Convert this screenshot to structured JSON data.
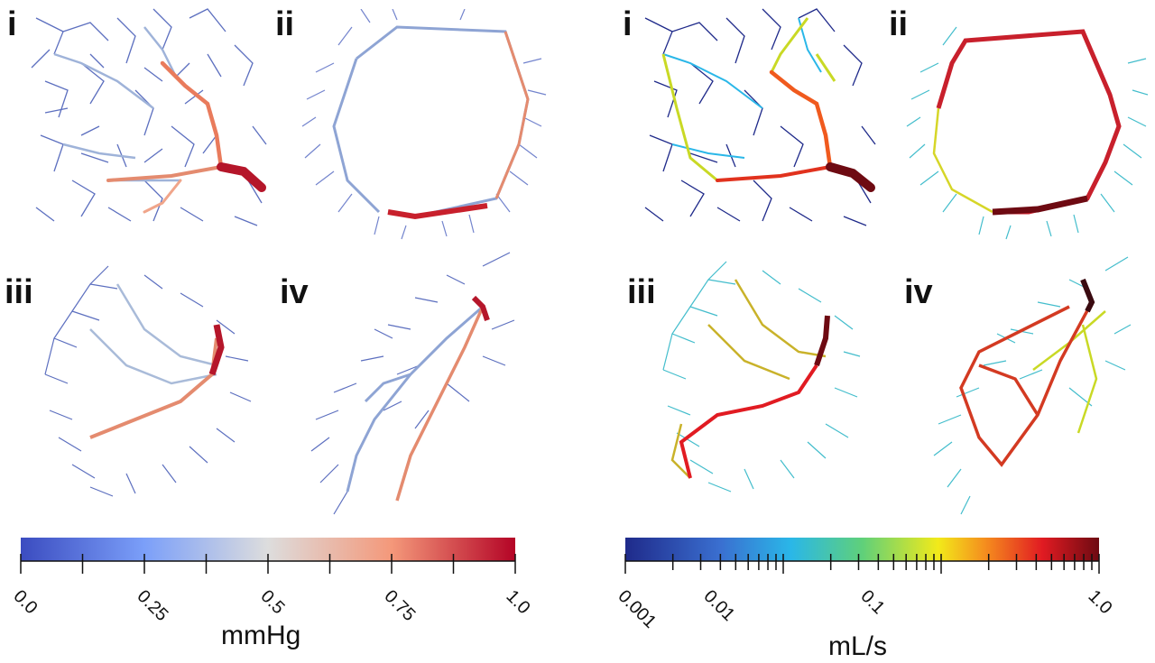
{
  "panels": {
    "left": [
      "i",
      "ii",
      "iii",
      "iv"
    ],
    "right": [
      "i",
      "ii",
      "iii",
      "iv"
    ]
  },
  "pressure_bar": {
    "unit": "mmHg",
    "tick_labels": [
      "0.0",
      "0.25",
      "0.5",
      "0.75",
      "1.0"
    ],
    "colors": [
      "#3b4cc0",
      "#dddddd",
      "#b40426"
    ]
  },
  "flow_bar": {
    "unit": "mL/s",
    "scale": "log",
    "tick_labels": [
      "0.001",
      "0.01",
      "0.1",
      "1.0"
    ],
    "colors": [
      "#1f2a8a",
      "#2ab7e8",
      "#5fd07a",
      "#f2ea1a",
      "#f58d1e",
      "#e11b22",
      "#6e0a12"
    ]
  }
}
